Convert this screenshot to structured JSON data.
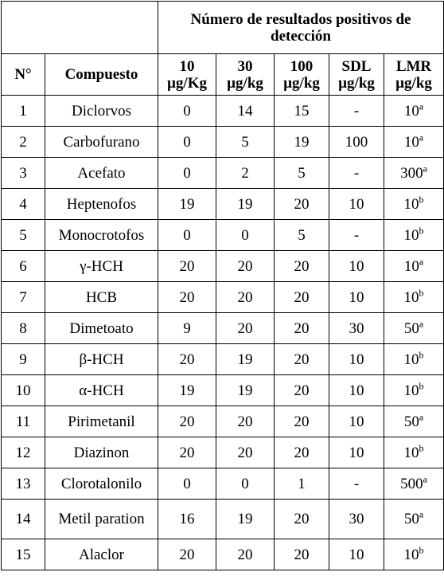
{
  "header": {
    "group_title": "Número de resultados positivos de detección",
    "col_no": "N°",
    "col_compound": "Compuesto",
    "col_10": [
      "10",
      "µg/Kg"
    ],
    "col_30": [
      "30",
      "µg/kg"
    ],
    "col_100": [
      "100",
      "µg/kg"
    ],
    "col_sdl": [
      "SDL",
      "µg/kg"
    ],
    "col_lmr": [
      "LMR",
      "µg/kg"
    ]
  },
  "rows": [
    {
      "n": "1",
      "compound": "Diclorvos",
      "c10": "0",
      "c30": "14",
      "c100": "15",
      "sdl": "-",
      "lmr": "10",
      "lmr_sup": "a"
    },
    {
      "n": "2",
      "compound": "Carbofurano",
      "c10": "0",
      "c30": "5",
      "c100": "19",
      "sdl": "100",
      "lmr": "10",
      "lmr_sup": "a"
    },
    {
      "n": "3",
      "compound": "Acefato",
      "c10": "0",
      "c30": "2",
      "c100": "5",
      "sdl": "-",
      "lmr": "300",
      "lmr_sup": "a"
    },
    {
      "n": "4",
      "compound": "Heptenofos",
      "c10": "19",
      "c30": "19",
      "c100": "20",
      "sdl": "10",
      "lmr": "10",
      "lmr_sup": "b"
    },
    {
      "n": "5",
      "compound": "Monocrotofos",
      "c10": "0",
      "c30": "0",
      "c100": "5",
      "sdl": "-",
      "lmr": "10",
      "lmr_sup": "b"
    },
    {
      "n": "6",
      "compound": "γ-HCH",
      "c10": "20",
      "c30": "20",
      "c100": "20",
      "sdl": "10",
      "lmr": "10",
      "lmr_sup": "a"
    },
    {
      "n": "7",
      "compound": "HCB",
      "c10": "20",
      "c30": "20",
      "c100": "20",
      "sdl": "10",
      "lmr": "10",
      "lmr_sup": "b"
    },
    {
      "n": "8",
      "compound": "Dimetoato",
      "c10": "9",
      "c30": "20",
      "c100": "20",
      "sdl": "30",
      "lmr": "50",
      "lmr_sup": "a"
    },
    {
      "n": "9",
      "compound": "β-HCH",
      "c10": "20",
      "c30": "19",
      "c100": "20",
      "sdl": "10",
      "lmr": "10",
      "lmr_sup": "b"
    },
    {
      "n": "10",
      "compound": "α-HCH",
      "c10": "19",
      "c30": "19",
      "c100": "20",
      "sdl": "10",
      "lmr": "10",
      "lmr_sup": "b"
    },
    {
      "n": "11",
      "compound": "Pirimetanil",
      "c10": "20",
      "c30": "20",
      "c100": "20",
      "sdl": "10",
      "lmr": "50",
      "lmr_sup": "a"
    },
    {
      "n": "12",
      "compound": "Diazinon",
      "c10": "20",
      "c30": "20",
      "c100": "20",
      "sdl": "10",
      "lmr": "10",
      "lmr_sup": "b"
    },
    {
      "n": "13",
      "compound": "Clorotalonilo",
      "c10": "0",
      "c30": "0",
      "c100": "1",
      "sdl": "-",
      "lmr": "500",
      "lmr_sup": "a"
    },
    {
      "n": "14",
      "compound": "Metil paration",
      "c10": "16",
      "c30": "19",
      "c100": "20",
      "sdl": "30",
      "lmr": "50",
      "lmr_sup": "a"
    },
    {
      "n": "15",
      "compound": "Alaclor",
      "c10": "20",
      "c30": "20",
      "c100": "20",
      "sdl": "10",
      "lmr": "10",
      "lmr_sup": "b"
    }
  ]
}
